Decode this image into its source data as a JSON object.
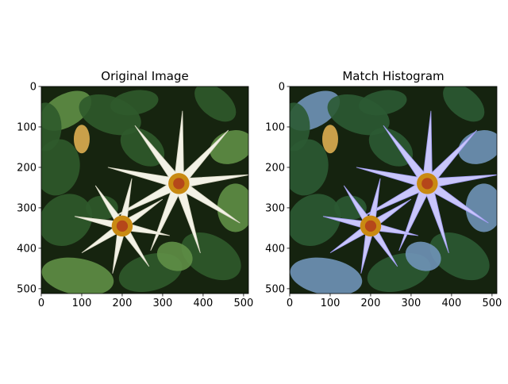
{
  "chart_data": [
    {
      "type": "image",
      "title": "Original Image",
      "xlim": [
        0,
        512
      ],
      "ylim": [
        512,
        0
      ],
      "xticks": [
        0,
        100,
        200,
        300,
        400,
        500
      ],
      "yticks": [
        0,
        100,
        200,
        300,
        400,
        500
      ],
      "image_content": "white-flowers",
      "colors": {
        "petal": "#f3f2e6",
        "petal_shade": "#d9d7c4",
        "center": "#c98a12",
        "center_core": "#b5471a",
        "foliage": "#2f5a2b",
        "foliage_light": "#5f8f46",
        "background": "#16240f"
      }
    },
    {
      "type": "image",
      "title": "Match Histogram",
      "xlim": [
        0,
        512
      ],
      "ylim": [
        512,
        0
      ],
      "xticks": [
        0,
        100,
        200,
        300,
        400,
        500
      ],
      "yticks": [
        0,
        100,
        200,
        300,
        400,
        500
      ],
      "image_content": "lavender-flowers",
      "colors": {
        "petal": "#c9c6fb",
        "petal_shade": "#9f9bf0",
        "center": "#c98a12",
        "center_core": "#b5471a",
        "foliage": "#2b5a33",
        "foliage_light": "#6f93b8",
        "background": "#15230f"
      }
    }
  ]
}
